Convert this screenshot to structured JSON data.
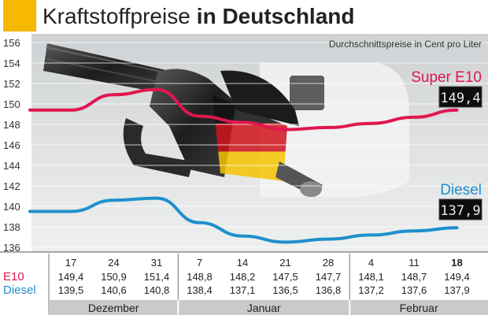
{
  "chart_data": {
    "type": "line",
    "title_light": "Kraftstoffpreise",
    "title_bold": "in Deutschland",
    "subtitle": "Durchschnittspreise in Cent pro Liter",
    "ylim": [
      136,
      156
    ],
    "yticks": [
      "136",
      "138",
      "140",
      "142",
      "144",
      "146",
      "148",
      "150",
      "152",
      "154",
      "156"
    ],
    "days": [
      "17",
      "24",
      "31",
      "7",
      "14",
      "21",
      "28",
      "4",
      "11",
      "18"
    ],
    "months": [
      "Dezember",
      "Januar",
      "Februar"
    ],
    "series": [
      {
        "name": "Super E10",
        "row_label": "E10",
        "color": "#e0174f",
        "values": [
          149.4,
          150.9,
          151.4,
          148.8,
          148.2,
          147.5,
          147.7,
          148.1,
          148.7,
          149.4
        ],
        "labels": [
          "149,4",
          "150,9",
          "151,4",
          "148,8",
          "148,2",
          "147,5",
          "147,7",
          "148,1",
          "148,7",
          "149,4"
        ],
        "display": "149,4"
      },
      {
        "name": "Diesel",
        "row_label": "Diesel",
        "color": "#1e90cc",
        "values": [
          139.5,
          140.6,
          140.8,
          138.4,
          137.1,
          136.5,
          136.8,
          137.2,
          137.6,
          137.9
        ],
        "labels": [
          "139,5",
          "140,6",
          "140,8",
          "138,4",
          "137,1",
          "136,5",
          "136,8",
          "137,2",
          "137,6",
          "137,9"
        ],
        "display": "137,9"
      }
    ]
  },
  "colors": {
    "accent": "#f6b800",
    "e10": "#e0174f",
    "diesel": "#1e90cc"
  }
}
